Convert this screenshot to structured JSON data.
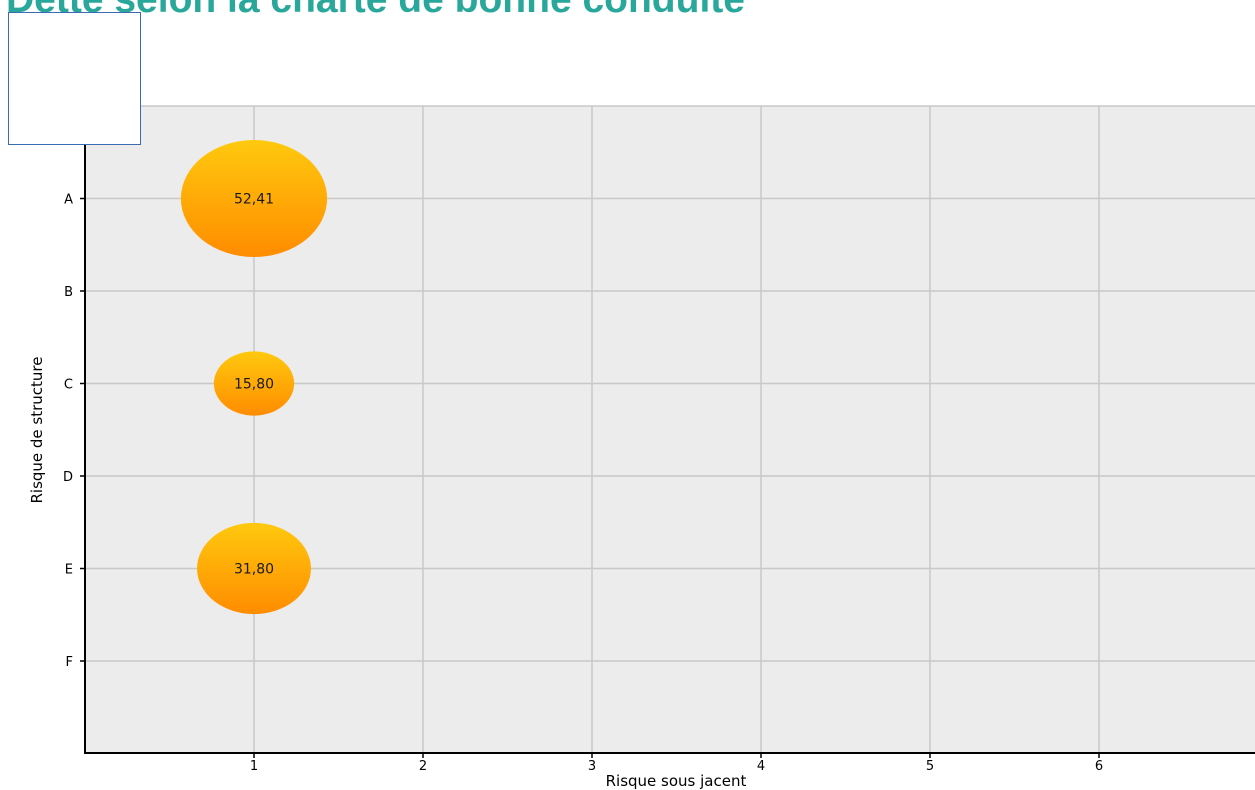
{
  "page": {
    "title": "Dette selon la charte de bonne conduite"
  },
  "colors": {
    "title": "#2aa79b",
    "plot_background": "#ececec",
    "grid": "#c8c8c8",
    "bubble_top": "#ffc90e",
    "bubble_bottom": "#ff8c00",
    "legend_border": "#3b6bb5"
  },
  "chart_data": {
    "type": "scatter",
    "variant": "bubble",
    "title": "Dette selon la charte de bonne conduite",
    "xlabel": "Risque sous jacent",
    "ylabel": "Risque de structure",
    "x_ticks": [
      1,
      2,
      3,
      4,
      5,
      6
    ],
    "y_categories": [
      "A",
      "B",
      "C",
      "D",
      "E",
      "F"
    ],
    "xlim": [
      0,
      7
    ],
    "grid": true,
    "points": [
      {
        "x": 1,
        "y": "A",
        "value": 52.41,
        "label": "52,41"
      },
      {
        "x": 1,
        "y": "C",
        "value": 15.8,
        "label": "15,80"
      },
      {
        "x": 1,
        "y": "E",
        "value": 31.8,
        "label": "31,80"
      }
    ]
  }
}
